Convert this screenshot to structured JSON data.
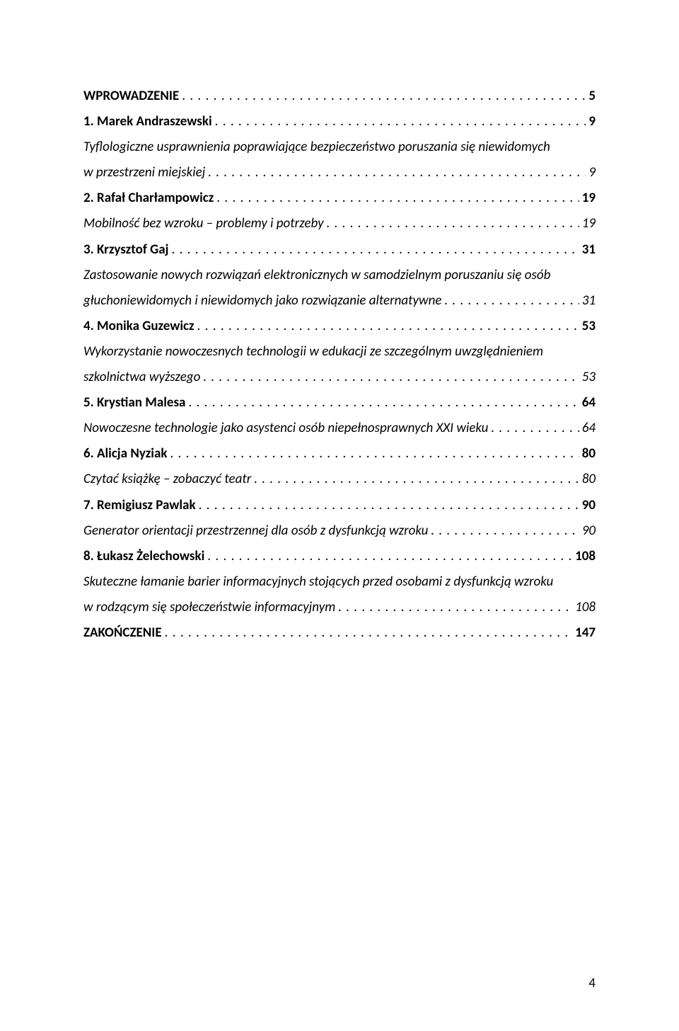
{
  "dots": ". . . . . . . . . . . . . . . . . . . . . . . . . . . . . . . . . . . . . . . . . . . . . . . . . . . . . . . . . . . . . . . . . . . . . . . . . . . . . . . . . . . . . . . . . . . . . . . . . . . . . . . . . . . . . . . . . . . . . . . . . . . . . . . . . . . . . . . . . . . .",
  "page_number": "4",
  "entries": [
    {
      "label": "WPROWADZENIE",
      "page": "5",
      "style": "bold"
    },
    {
      "label": "1. Marek Andraszewski",
      "page": "9",
      "style": "bold"
    },
    {
      "label": "Tyflologiczne usprawnienia poprawiające bezpieczeństwo poruszania się niewidomych",
      "style": "italic",
      "nolead": true
    },
    {
      "label": "w przestrzeni miejskiej",
      "page": "9",
      "style": "italic"
    },
    {
      "label": "2. Rafał Charłampowicz",
      "page": "19",
      "style": "bold"
    },
    {
      "label": "Mobilność bez wzroku – problemy i potrzeby",
      "page": "19",
      "style": "italic"
    },
    {
      "label": "3. Krzysztof Gaj",
      "page": "31",
      "style": "bold"
    },
    {
      "label": "Zastosowanie nowych rozwiązań elektronicznych w samodzielnym poruszaniu się osób",
      "style": "italic",
      "nolead": true
    },
    {
      "label": "głuchoniewidomych i niewidomych jako rozwiązanie alternatywne",
      "page": "31",
      "style": "italic"
    },
    {
      "label": "4. Monika Guzewicz",
      "page": "53",
      "style": "bold"
    },
    {
      "label": "Wykorzystanie nowoczesnych technologii w edukacji ze szczególnym uwzględnieniem",
      "style": "italic",
      "nolead": true
    },
    {
      "label": "szkolnictwa wyższego",
      "page": "53",
      "style": "italic"
    },
    {
      "label": "5. Krystian Malesa",
      "page": "64",
      "style": "bold"
    },
    {
      "label": "Nowoczesne technologie jako asystenci osób niepełnosprawnych XXI wieku",
      "page": "64",
      "style": "italic"
    },
    {
      "label": "6. Alicja Nyziak",
      "page": "80",
      "style": "bold"
    },
    {
      "label": "Czytać książkę – zobaczyć teatr",
      "page": "80",
      "style": "italic"
    },
    {
      "label": "7. Remigiusz Pawlak",
      "page": "90",
      "style": "bold"
    },
    {
      "label": "Generator orientacji przestrzennej dla osób z dysfunkcją wzroku",
      "page": "90",
      "style": "italic"
    },
    {
      "label": "8. Łukasz Żelechowski",
      "page": "108",
      "style": "bold"
    },
    {
      "label": "Skuteczne łamanie barier informacyjnych stojących przed osobami z dysfunkcją wzroku",
      "style": "italic",
      "nolead": true
    },
    {
      "label": "w rodzącym się społeczeństwie informacyjnym",
      "page": "108",
      "style": "italic"
    },
    {
      "label": "ZAKOŃCZENIE",
      "page": "147",
      "style": "bold"
    }
  ]
}
